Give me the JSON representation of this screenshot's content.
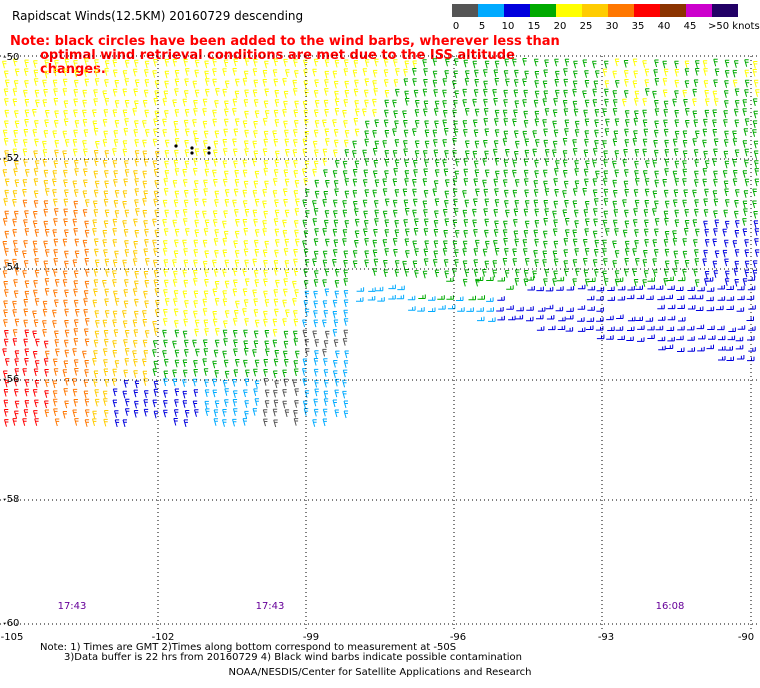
{
  "title": "Rapidscat Winds(12.5KM) 20160729 descending",
  "note_line1": "Note: black circles have been added to the wind barbs, wherever less than",
  "note_line2": "optimal wind retrieval conditions are met due to the ISS altitude changes.",
  "legend": {
    "labels": [
      "0",
      "5",
      "10",
      "15",
      "20",
      "25",
      "30",
      "35",
      "40",
      "45",
      ">50 knots"
    ],
    "colors": [
      "#555555",
      "#00aaff",
      "#0000dd",
      "#00aa00",
      "#ffff00",
      "#ffcc00",
      "#ff7700",
      "#ff0000",
      "#8b3300",
      "#cc00cc",
      "#220066"
    ]
  },
  "lat_labels": [
    "-50",
    "-52",
    "-54",
    "-56",
    "-58",
    "-60"
  ],
  "lon_labels": [
    "-105",
    "-102",
    "-99",
    "-96",
    "-93",
    "-90"
  ],
  "time_labels": [
    "17:43",
    "17:43",
    "16:08"
  ],
  "footnote_line1": "Note: 1) Times are GMT 2)Times along bottom correspond to measurement at -50S",
  "footnote_line2": "3)Data buffer is 22 hrs from 20160729 4) Black wind barbs indicate possible contamination",
  "credit": "NOAA/NESDIS/Center for Satellite Applications and Research"
}
